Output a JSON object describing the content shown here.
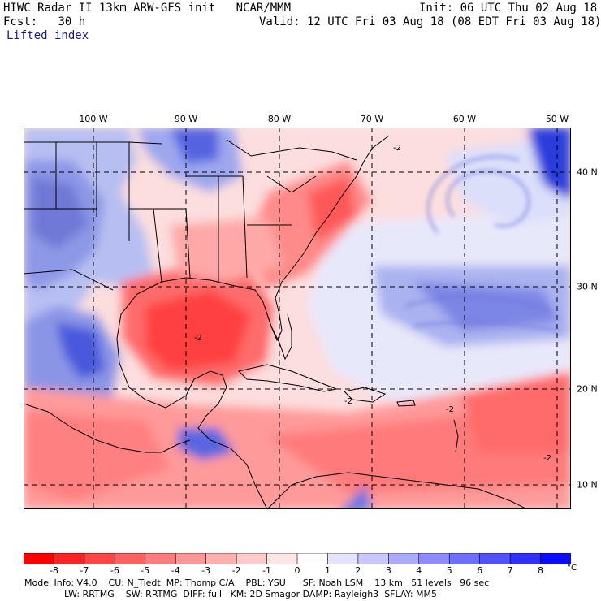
{
  "header": {
    "title": "HIWC Radar II 13km ARW-GFS init",
    "center": "NCAR/MMM",
    "init": "Init: 06 UTC Thu 02 Aug 18",
    "fcst_label": "Fcst:",
    "fcst_value": "30 h",
    "valid": "Valid: 12 UTC Fri 03 Aug 18 (08 EDT Fri 03 Aug 18)",
    "field": "Lifted index"
  },
  "axes": {
    "lon_labels": [
      "100 W",
      "90 W",
      "80 W",
      "70 W",
      "60 W",
      "50 W"
    ],
    "lat_labels": [
      "40 N",
      "30 N",
      "20 N",
      "10 N"
    ]
  },
  "colorbar": {
    "labels": [
      "-8",
      "-7",
      "-6",
      "-5",
      "-4",
      "-3",
      "-2",
      "-1",
      "0",
      "1",
      "2",
      "3",
      "4",
      "5",
      "6",
      "7",
      "8"
    ],
    "unit": "°C",
    "colors": [
      "#ff0000",
      "#ff2222",
      "#ff4444",
      "#ff6060",
      "#ff7b7b",
      "#ff9696",
      "#ffb0b0",
      "#ffcaca",
      "#ffe6e6",
      "#ffffff",
      "#e4e4ff",
      "#c8c8ff",
      "#aaaaff",
      "#8c8cff",
      "#6e6eff",
      "#5050ff",
      "#3030ff",
      "#0a0aff"
    ]
  },
  "footer": {
    "line1": "Model Info: V4.0    CU: N_Tiedt  MP: Thomp C/A    PBL: YSU      SF: Noah LSM    13 km   51 levels   96 sec",
    "line2": "LW: RRTMG    SW: RRTMG  DIFF: full   KM: 2D Smagor DAMP: Rayleigh3  SFLAY: MM5"
  },
  "contour_labels": [
    "-2",
    "-2",
    "-2",
    "-2",
    "-2"
  ]
}
